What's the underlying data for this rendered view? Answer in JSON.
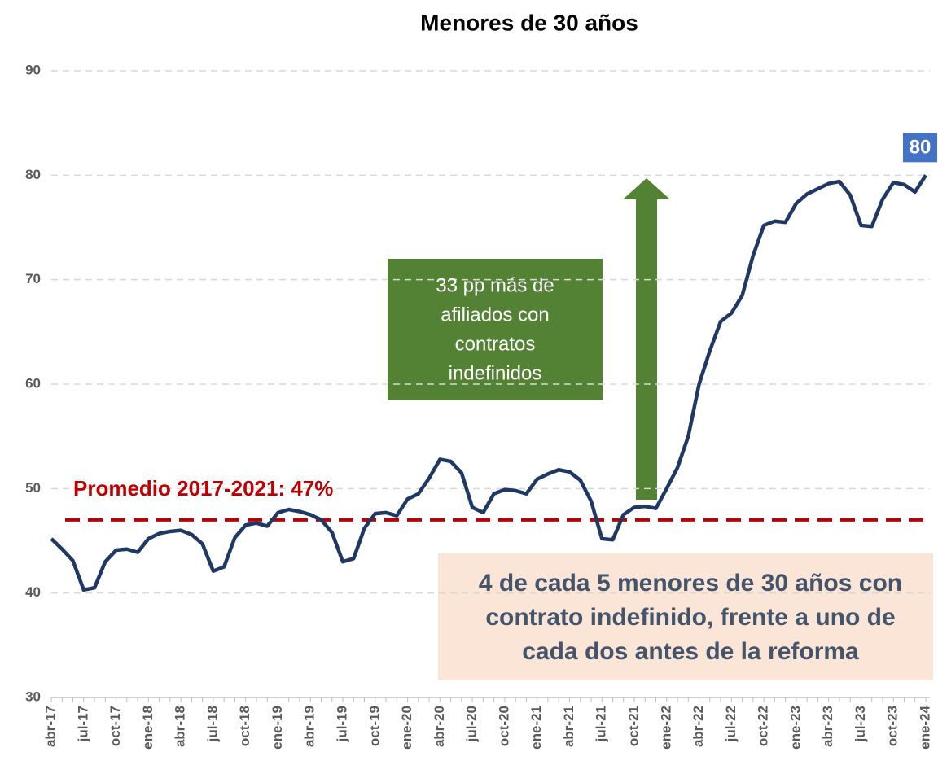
{
  "chart_data": {
    "type": "line",
    "title": "Menores de 30 años",
    "categories": [
      "abr-17",
      null,
      null,
      "jul-17",
      null,
      null,
      "oct-17",
      null,
      null,
      "ene-18",
      null,
      null,
      "abr-18",
      null,
      null,
      "jul-18",
      null,
      null,
      "oct-18",
      null,
      null,
      "ene-19",
      null,
      null,
      "abr-19",
      null,
      null,
      "jul-19",
      null,
      null,
      "oct-19",
      null,
      null,
      "ene-20",
      null,
      null,
      "abr-20",
      null,
      null,
      "jul-20",
      null,
      null,
      "oct-20",
      null,
      null,
      "ene-21",
      null,
      null,
      "abr-21",
      null,
      null,
      "jul-21",
      null,
      null,
      "oct-21",
      null,
      null,
      "ene-22",
      null,
      null,
      "abr-22",
      null,
      null,
      "jul-22",
      null,
      null,
      "oct-22",
      null,
      null,
      "ene-23",
      null,
      null,
      "abr-23",
      null,
      null,
      "jul-23",
      null,
      null,
      "oct-23",
      null,
      null,
      "ene-24"
    ],
    "series": [
      {
        "color": "#1f3864",
        "values": [
          45.2,
          44.2,
          43.1,
          40.3,
          40.5,
          43.0,
          44.1,
          44.2,
          43.9,
          45.2,
          45.7,
          45.9,
          46.0,
          45.6,
          44.7,
          42.1,
          42.5,
          45.3,
          46.5,
          46.7,
          46.4,
          47.7,
          48.0,
          47.8,
          47.5,
          47.0,
          45.8,
          43.0,
          43.3,
          46.2,
          47.6,
          47.7,
          47.4,
          49.0,
          49.5,
          51.0,
          52.8,
          52.6,
          51.5,
          48.2,
          47.7,
          49.5,
          49.9,
          49.8,
          49.5,
          50.9,
          51.4,
          51.8,
          51.6,
          50.8,
          48.8,
          45.2,
          45.1,
          47.5,
          48.2,
          48.3,
          48.1,
          50.0,
          52.0,
          55.0,
          60.0,
          63.2,
          66.0,
          66.8,
          68.5,
          72.3,
          75.2,
          75.6,
          75.5,
          77.3,
          78.2,
          78.7,
          79.2,
          79.4,
          78.1,
          75.2,
          75.1,
          77.7,
          79.3,
          79.1,
          78.4,
          80
        ],
        "value_labels": [
          null,
          null,
          null,
          null,
          null,
          null,
          null,
          null,
          null,
          null,
          null,
          null,
          null,
          null,
          null,
          null,
          null,
          null,
          null,
          null,
          null,
          null,
          null,
          null,
          null,
          null,
          null,
          null,
          null,
          null,
          null,
          null,
          null,
          null,
          null,
          null,
          null,
          null,
          null,
          null,
          null,
          null,
          null,
          null,
          null,
          null,
          null,
          null,
          null,
          null,
          null,
          null,
          null,
          null,
          null,
          null,
          null,
          null,
          null,
          null,
          null,
          null,
          null,
          null,
          null,
          null,
          null,
          null,
          null,
          null,
          null,
          null,
          null,
          null,
          null,
          null,
          null,
          null,
          null,
          null,
          null,
          "80"
        ]
      }
    ],
    "ylim": [
      30,
      90
    ],
    "yticks": [
      30,
      40,
      50,
      60,
      70,
      80,
      90
    ],
    "grid": true,
    "average": 47,
    "average_color": "#c00000",
    "average_label": "Promedio 2017-2021: 47%",
    "arrow_text": [
      "33 pp más de",
      "afiliados con",
      "contratos",
      "indefinidos"
    ],
    "summary_text": [
      "4 de cada 5 menores de 30 años con",
      "contrato indefinido, frente a uno de",
      "cada dos antes de la reforma"
    ]
  }
}
